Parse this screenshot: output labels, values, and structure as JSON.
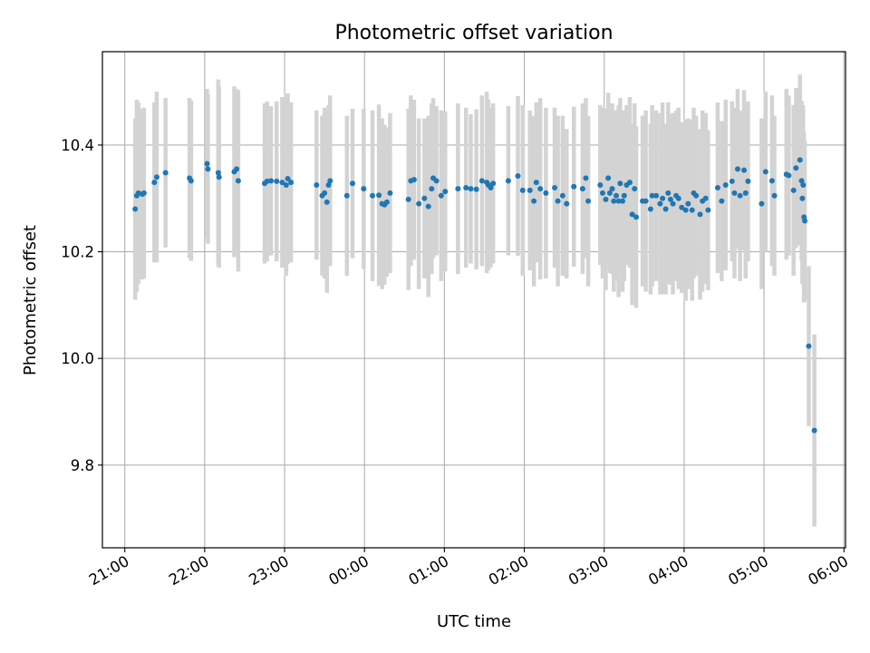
{
  "chart_data": {
    "type": "scatter",
    "title": "Photometric offset variation",
    "xlabel": "UTC time",
    "ylabel": "Photometric offset",
    "xlim": [
      "21:00",
      "06:00"
    ],
    "xlim_hours": [
      20.72,
      30.02
    ],
    "ylim": [
      9.645,
      10.575
    ],
    "grid": true,
    "x_ticks": [
      "21:00",
      "22:00",
      "23:00",
      "00:00",
      "01:00",
      "02:00",
      "03:00",
      "04:00",
      "05:00",
      "06:00"
    ],
    "x_tick_hours": [
      21,
      22,
      23,
      24,
      25,
      26,
      27,
      28,
      29,
      30
    ],
    "y_ticks": [
      9.8,
      10.0,
      10.2,
      10.4
    ],
    "y_tick_labels": [
      "9.8",
      "10.0",
      "10.2",
      "10.4"
    ],
    "colors": {
      "point": "#1f77b4",
      "errorbar": "#d3d3d3"
    },
    "points": [
      {
        "t": 21.13,
        "y": 10.28,
        "err": 0.17
      },
      {
        "t": 21.15,
        "y": 10.305,
        "err": 0.18
      },
      {
        "t": 21.17,
        "y": 10.31,
        "err": 0.17
      },
      {
        "t": 21.22,
        "y": 10.308,
        "err": 0.16
      },
      {
        "t": 21.24,
        "y": 10.31,
        "err": 0.16
      },
      {
        "t": 21.37,
        "y": 10.33,
        "err": 0.15
      },
      {
        "t": 21.4,
        "y": 10.34,
        "err": 0.16
      },
      {
        "t": 21.51,
        "y": 10.348,
        "err": 0.14
      },
      {
        "t": 21.81,
        "y": 10.338,
        "err": 0.15
      },
      {
        "t": 21.83,
        "y": 10.333,
        "err": 0.15
      },
      {
        "t": 22.03,
        "y": 10.365,
        "err": 0.14
      },
      {
        "t": 22.04,
        "y": 10.355,
        "err": 0.14
      },
      {
        "t": 22.17,
        "y": 10.348,
        "err": 0.175
      },
      {
        "t": 22.18,
        "y": 10.34,
        "err": 0.17
      },
      {
        "t": 22.37,
        "y": 10.35,
        "err": 0.16
      },
      {
        "t": 22.4,
        "y": 10.355,
        "err": 0.15
      },
      {
        "t": 22.42,
        "y": 10.333,
        "err": 0.17
      },
      {
        "t": 22.75,
        "y": 10.328,
        "err": 0.15
      },
      {
        "t": 22.78,
        "y": 10.332,
        "err": 0.15
      },
      {
        "t": 22.83,
        "y": 10.333,
        "err": 0.14
      },
      {
        "t": 22.9,
        "y": 10.332,
        "err": 0.15
      },
      {
        "t": 22.97,
        "y": 10.33,
        "err": 0.16
      },
      {
        "t": 23.02,
        "y": 10.325,
        "err": 0.17
      },
      {
        "t": 23.04,
        "y": 10.337,
        "err": 0.16
      },
      {
        "t": 23.08,
        "y": 10.33,
        "err": 0.15
      },
      {
        "t": 23.4,
        "y": 10.325,
        "err": 0.14
      },
      {
        "t": 23.47,
        "y": 10.305,
        "err": 0.15
      },
      {
        "t": 23.5,
        "y": 10.31,
        "err": 0.16
      },
      {
        "t": 23.53,
        "y": 10.293,
        "err": 0.17
      },
      {
        "t": 23.55,
        "y": 10.325,
        "err": 0.15
      },
      {
        "t": 23.57,
        "y": 10.333,
        "err": 0.16
      },
      {
        "t": 23.78,
        "y": 10.305,
        "err": 0.15
      },
      {
        "t": 23.85,
        "y": 10.328,
        "err": 0.14
      },
      {
        "t": 23.99,
        "y": 10.318,
        "err": 0.15
      },
      {
        "t": 24.1,
        "y": 10.305,
        "err": 0.16
      },
      {
        "t": 24.18,
        "y": 10.306,
        "err": 0.17
      },
      {
        "t": 24.22,
        "y": 10.29,
        "err": 0.16
      },
      {
        "t": 24.25,
        "y": 10.288,
        "err": 0.15
      },
      {
        "t": 24.28,
        "y": 10.293,
        "err": 0.14
      },
      {
        "t": 24.32,
        "y": 10.31,
        "err": 0.15
      },
      {
        "t": 24.55,
        "y": 10.298,
        "err": 0.17
      },
      {
        "t": 24.58,
        "y": 10.333,
        "err": 0.16
      },
      {
        "t": 24.62,
        "y": 10.335,
        "err": 0.15
      },
      {
        "t": 24.68,
        "y": 10.29,
        "err": 0.16
      },
      {
        "t": 24.75,
        "y": 10.3,
        "err": 0.15
      },
      {
        "t": 24.8,
        "y": 10.285,
        "err": 0.17
      },
      {
        "t": 24.84,
        "y": 10.318,
        "err": 0.16
      },
      {
        "t": 24.86,
        "y": 10.338,
        "err": 0.15
      },
      {
        "t": 24.9,
        "y": 10.333,
        "err": 0.14
      },
      {
        "t": 24.96,
        "y": 10.305,
        "err": 0.16
      },
      {
        "t": 25.01,
        "y": 10.313,
        "err": 0.15
      },
      {
        "t": 25.17,
        "y": 10.318,
        "err": 0.16
      },
      {
        "t": 25.27,
        "y": 10.32,
        "err": 0.15
      },
      {
        "t": 25.33,
        "y": 10.318,
        "err": 0.14
      },
      {
        "t": 25.4,
        "y": 10.317,
        "err": 0.15
      },
      {
        "t": 25.47,
        "y": 10.333,
        "err": 0.16
      },
      {
        "t": 25.53,
        "y": 10.33,
        "err": 0.17
      },
      {
        "t": 25.55,
        "y": 10.325,
        "err": 0.16
      },
      {
        "t": 25.58,
        "y": 10.32,
        "err": 0.15
      },
      {
        "t": 25.61,
        "y": 10.328,
        "err": 0.15
      },
      {
        "t": 25.8,
        "y": 10.333,
        "err": 0.14
      },
      {
        "t": 25.92,
        "y": 10.342,
        "err": 0.15
      },
      {
        "t": 25.98,
        "y": 10.315,
        "err": 0.16
      },
      {
        "t": 26.07,
        "y": 10.315,
        "err": 0.15
      },
      {
        "t": 26.12,
        "y": 10.295,
        "err": 0.16
      },
      {
        "t": 26.15,
        "y": 10.33,
        "err": 0.15
      },
      {
        "t": 26.2,
        "y": 10.318,
        "err": 0.17
      },
      {
        "t": 26.27,
        "y": 10.31,
        "err": 0.16
      },
      {
        "t": 26.38,
        "y": 10.32,
        "err": 0.15
      },
      {
        "t": 26.42,
        "y": 10.295,
        "err": 0.16
      },
      {
        "t": 26.48,
        "y": 10.305,
        "err": 0.15
      },
      {
        "t": 26.53,
        "y": 10.29,
        "err": 0.14
      },
      {
        "t": 26.62,
        "y": 10.322,
        "err": 0.15
      },
      {
        "t": 26.73,
        "y": 10.318,
        "err": 0.16
      },
      {
        "t": 26.77,
        "y": 10.338,
        "err": 0.15
      },
      {
        "t": 26.8,
        "y": 10.295,
        "err": 0.16
      },
      {
        "t": 26.95,
        "y": 10.325,
        "err": 0.15
      },
      {
        "t": 26.98,
        "y": 10.31,
        "err": 0.16
      },
      {
        "t": 27.02,
        "y": 10.298,
        "err": 0.17
      },
      {
        "t": 27.05,
        "y": 10.338,
        "err": 0.16
      },
      {
        "t": 27.07,
        "y": 10.31,
        "err": 0.15
      },
      {
        "t": 27.1,
        "y": 10.318,
        "err": 0.16
      },
      {
        "t": 27.12,
        "y": 10.295,
        "err": 0.17
      },
      {
        "t": 27.15,
        "y": 10.305,
        "err": 0.16
      },
      {
        "t": 27.18,
        "y": 10.295,
        "err": 0.18
      },
      {
        "t": 27.2,
        "y": 10.328,
        "err": 0.16
      },
      {
        "t": 27.23,
        "y": 10.295,
        "err": 0.17
      },
      {
        "t": 27.25,
        "y": 10.305,
        "err": 0.16
      },
      {
        "t": 27.28,
        "y": 10.325,
        "err": 0.15
      },
      {
        "t": 27.32,
        "y": 10.33,
        "err": 0.16
      },
      {
        "t": 27.35,
        "y": 10.27,
        "err": 0.17
      },
      {
        "t": 27.38,
        "y": 10.318,
        "err": 0.16
      },
      {
        "t": 27.4,
        "y": 10.265,
        "err": 0.17
      },
      {
        "t": 27.48,
        "y": 10.295,
        "err": 0.16
      },
      {
        "t": 27.52,
        "y": 10.295,
        "err": 0.17
      },
      {
        "t": 27.58,
        "y": 10.28,
        "err": 0.16
      },
      {
        "t": 27.6,
        "y": 10.305,
        "err": 0.17
      },
      {
        "t": 27.65,
        "y": 10.305,
        "err": 0.16
      },
      {
        "t": 27.7,
        "y": 10.29,
        "err": 0.17
      },
      {
        "t": 27.73,
        "y": 10.3,
        "err": 0.18
      },
      {
        "t": 27.77,
        "y": 10.28,
        "err": 0.16
      },
      {
        "t": 27.8,
        "y": 10.31,
        "err": 0.17
      },
      {
        "t": 27.83,
        "y": 10.298,
        "err": 0.16
      },
      {
        "t": 27.86,
        "y": 10.29,
        "err": 0.17
      },
      {
        "t": 27.9,
        "y": 10.305,
        "err": 0.16
      },
      {
        "t": 27.93,
        "y": 10.3,
        "err": 0.17
      },
      {
        "t": 27.97,
        "y": 10.283,
        "err": 0.16
      },
      {
        "t": 28.02,
        "y": 10.278,
        "err": 0.17
      },
      {
        "t": 28.05,
        "y": 10.29,
        "err": 0.16
      },
      {
        "t": 28.1,
        "y": 10.278,
        "err": 0.17
      },
      {
        "t": 28.12,
        "y": 10.31,
        "err": 0.16
      },
      {
        "t": 28.15,
        "y": 10.305,
        "err": 0.15
      },
      {
        "t": 28.2,
        "y": 10.27,
        "err": 0.16
      },
      {
        "t": 28.23,
        "y": 10.295,
        "err": 0.17
      },
      {
        "t": 28.27,
        "y": 10.3,
        "err": 0.16
      },
      {
        "t": 28.3,
        "y": 10.278,
        "err": 0.15
      },
      {
        "t": 28.42,
        "y": 10.32,
        "err": 0.16
      },
      {
        "t": 28.47,
        "y": 10.295,
        "err": 0.15
      },
      {
        "t": 28.52,
        "y": 10.325,
        "err": 0.16
      },
      {
        "t": 28.6,
        "y": 10.332,
        "err": 0.15
      },
      {
        "t": 28.63,
        "y": 10.31,
        "err": 0.16
      },
      {
        "t": 28.67,
        "y": 10.355,
        "err": 0.15
      },
      {
        "t": 28.7,
        "y": 10.305,
        "err": 0.16
      },
      {
        "t": 28.75,
        "y": 10.353,
        "err": 0.15
      },
      {
        "t": 28.77,
        "y": 10.31,
        "err": 0.16
      },
      {
        "t": 28.8,
        "y": 10.332,
        "err": 0.15
      },
      {
        "t": 28.97,
        "y": 10.29,
        "err": 0.16
      },
      {
        "t": 29.02,
        "y": 10.35,
        "err": 0.15
      },
      {
        "t": 29.1,
        "y": 10.333,
        "err": 0.16
      },
      {
        "t": 29.13,
        "y": 10.305,
        "err": 0.15
      },
      {
        "t": 29.28,
        "y": 10.345,
        "err": 0.16
      },
      {
        "t": 29.31,
        "y": 10.343,
        "err": 0.15
      },
      {
        "t": 29.37,
        "y": 10.315,
        "err": 0.16
      },
      {
        "t": 29.4,
        "y": 10.357,
        "err": 0.15
      },
      {
        "t": 29.45,
        "y": 10.372,
        "err": 0.16
      },
      {
        "t": 29.47,
        "y": 10.333,
        "err": 0.15
      },
      {
        "t": 29.48,
        "y": 10.3,
        "err": 0.16
      },
      {
        "t": 29.49,
        "y": 10.325,
        "err": 0.15
      },
      {
        "t": 29.5,
        "y": 10.265,
        "err": 0.16
      },
      {
        "t": 29.51,
        "y": 10.258,
        "err": 0.15
      },
      {
        "t": 29.56,
        "y": 10.023,
        "err": 0.15
      },
      {
        "t": 29.63,
        "y": 9.865,
        "err": 0.18
      }
    ]
  }
}
